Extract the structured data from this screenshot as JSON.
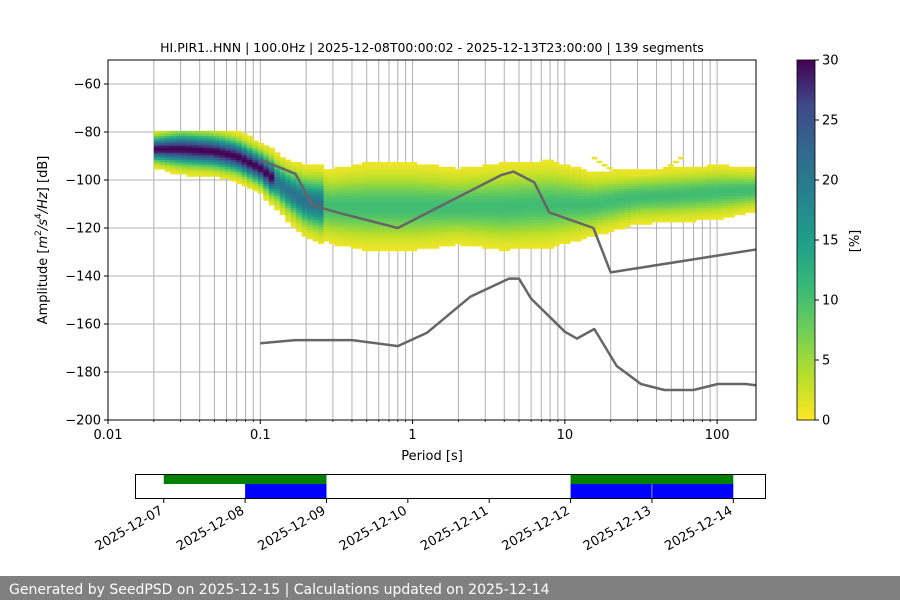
{
  "chart_data": [
    {
      "type": "heatmap",
      "title": "HI.PIR1..HNN | 100.0Hz | 2025-12-08T00:00:02 - 2025-12-13T23:00:00 | 139 segments",
      "xlabel": "Period [s]",
      "ylabel_parts": [
        "Amplitude [",
        "m",
        "2",
        "/",
        "s",
        "4",
        "/",
        "Hz",
        "] [dB]"
      ],
      "x_scale": "log",
      "xlim": [
        0.01,
        180
      ],
      "ylim": [
        -200,
        -50
      ],
      "x_ticks": [
        {
          "value": 0.01,
          "label": "0.01"
        },
        {
          "value": 0.1,
          "label": "0.1"
        },
        {
          "value": 1,
          "label": "1"
        },
        {
          "value": 10,
          "label": "10"
        },
        {
          "value": 100,
          "label": "100"
        }
      ],
      "y_ticks": [
        {
          "value": -60,
          "label": "−60"
        },
        {
          "value": -80,
          "label": "−80"
        },
        {
          "value": -100,
          "label": "−100"
        },
        {
          "value": -120,
          "label": "−120"
        },
        {
          "value": -140,
          "label": "−140"
        },
        {
          "value": -160,
          "label": "−160"
        },
        {
          "value": -180,
          "label": "−180"
        },
        {
          "value": -200,
          "label": "−200"
        }
      ],
      "grid": "vertical lines at each period bin",
      "colorbar": {
        "label": "[%]",
        "range": [
          0,
          30
        ],
        "colormap": "viridis_r",
        "ticks": [
          {
            "value": 0,
            "label": "0"
          },
          {
            "value": 5,
            "label": "5"
          },
          {
            "value": 10,
            "label": "10"
          },
          {
            "value": 15,
            "label": "15"
          },
          {
            "value": 20,
            "label": "20"
          },
          {
            "value": 25,
            "label": "25"
          },
          {
            "value": 30,
            "label": "30"
          }
        ]
      },
      "density_ridge": [
        {
          "period": 0.02,
          "center": -87,
          "spread": 3
        },
        {
          "period": 0.03,
          "center": -87,
          "spread": 4
        },
        {
          "period": 0.05,
          "center": -88,
          "spread": 4
        },
        {
          "period": 0.07,
          "center": -90,
          "spread": 4
        },
        {
          "period": 0.1,
          "center": -95,
          "spread": 4
        },
        {
          "period": 0.15,
          "center": -104,
          "spread": 5
        },
        {
          "period": 0.2,
          "center": -109,
          "spread": 6
        },
        {
          "period": 0.3,
          "center": -111,
          "spread": 7
        },
        {
          "period": 0.5,
          "center": -111,
          "spread": 8
        },
        {
          "period": 1,
          "center": -111,
          "spread": 8
        },
        {
          "period": 2,
          "center": -111,
          "spread": 7
        },
        {
          "period": 4,
          "center": -111,
          "spread": 8
        },
        {
          "period": 8,
          "center": -110,
          "spread": 8
        },
        {
          "period": 15,
          "center": -110,
          "spread": 6
        },
        {
          "period": 30,
          "center": -107,
          "spread": 5
        },
        {
          "period": 60,
          "center": -106,
          "spread": 5
        },
        {
          "period": 100,
          "center": -105,
          "spread": 5
        },
        {
          "period": 180,
          "center": -104,
          "spread": 4
        }
      ],
      "density_lobe": {
        "from": 15,
        "to": 60,
        "center": -98,
        "spread": 4
      },
      "series": [
        {
          "line": "noise model upper",
          "x": [
            0.1,
            0.17,
            0.22,
            0.32,
            0.8,
            3.8,
            4.6,
            6.3,
            7.9,
            15.4,
            20,
            354.8
          ],
          "y": [
            -91.5,
            -97.4,
            -110.5,
            -113.5,
            -120,
            -98,
            -96.5,
            -101,
            -113.5,
            -120,
            -138.5,
            -126
          ]
        },
        {
          "line": "noise model lower",
          "x": [
            0.1,
            0.17,
            0.4,
            0.8,
            1.24,
            2.4,
            4.3,
            5,
            6,
            10,
            12,
            15.6,
            21.9,
            31.6,
            45,
            70,
            101,
            154,
            179
          ],
          "y": [
            -168,
            -166.7,
            -166.7,
            -169.2,
            -163.7,
            -148.6,
            -141.1,
            -141.1,
            -149.4,
            -163.2,
            -166.1,
            -162.1,
            -177.5,
            -185,
            -187.5,
            -187.5,
            -185,
            -185,
            -185.5
          ]
        }
      ]
    },
    {
      "type": "timeline",
      "x_ticks": [
        "2025-12-07",
        "2025-12-08",
        "2025-12-09",
        "2025-12-10",
        "2025-12-11",
        "2025-12-12",
        "2025-12-13",
        "2025-12-14"
      ],
      "xlim": [
        "2025-12-06T15:40",
        "2025-12-14T09:30"
      ],
      "rows": [
        {
          "color": "#008000",
          "spans": [
            [
              "2025-12-07T00:00",
              "2025-12-09T00:00"
            ],
            [
              "2025-12-12T00:00",
              "2025-12-14T00:00"
            ]
          ]
        },
        {
          "color": "#0000ff",
          "spans": [
            [
              "2025-12-08T00:00",
              "2025-12-09T00:00"
            ],
            [
              "2025-12-12T00:00",
              "2025-12-12T23:55"
            ],
            [
              "2025-12-13T00:05",
              "2025-12-14T00:00"
            ]
          ]
        }
      ]
    }
  ],
  "footer": {
    "text": "Generated by SeedPSD on 2025-12-15 | Calculations updated on 2025-12-14"
  },
  "colors": {
    "line": "#666666",
    "grid": "#b0b0b0",
    "footer_bg": "#808080"
  }
}
